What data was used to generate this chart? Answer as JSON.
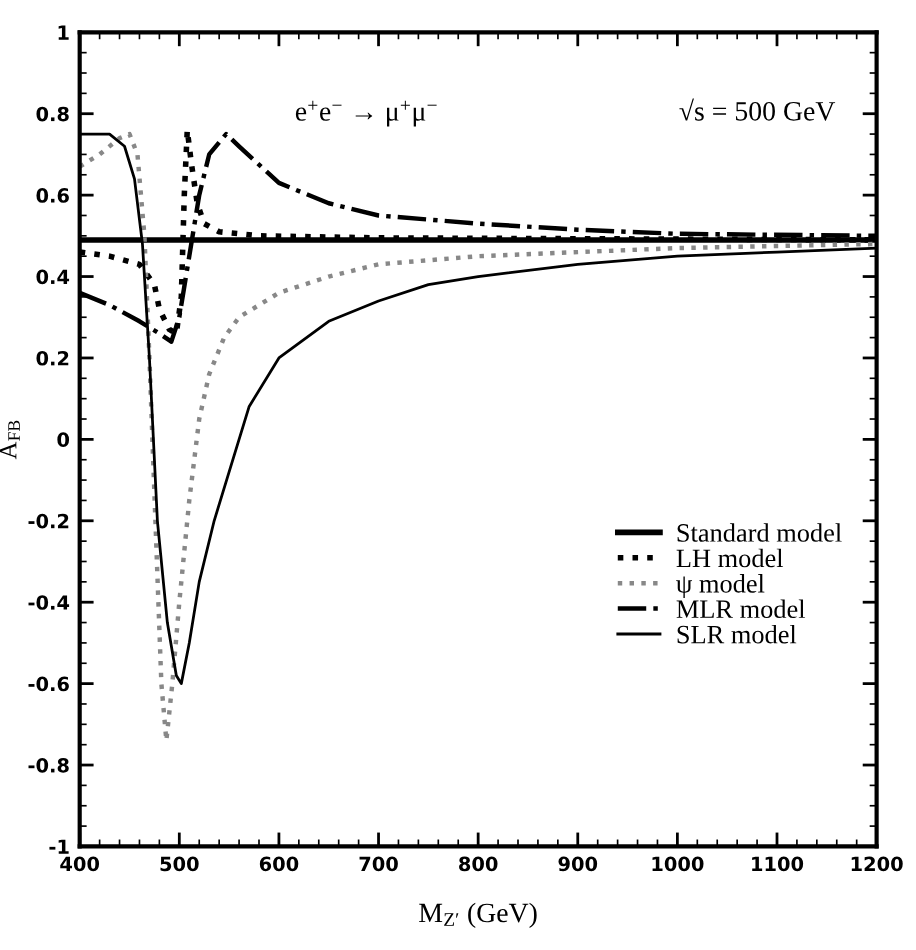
{
  "chart_data": {
    "type": "line",
    "xlabel": "M$_{Z′}$ (GeV)",
    "ylabel": "A$_{FB}$",
    "annotations": [
      "e$^{+}$e$^{−}$ → μ$^{+}$μ$^{−}$",
      "√s = 500 GeV"
    ],
    "xlim": [
      400,
      1200
    ],
    "xticks": [
      400,
      500,
      600,
      700,
      800,
      900,
      1000,
      1100,
      1200
    ],
    "ylim": [
      -1,
      1
    ],
    "yticks": [
      -1,
      -0.8,
      -0.6,
      -0.4,
      -0.2,
      0,
      0.2,
      0.4,
      0.6,
      0.8,
      1
    ],
    "grid": false,
    "legend": "lower right",
    "marker": "none",
    "series": [
      {
        "name": "Standard model",
        "color": "#000000",
        "line_style": "solid",
        "x": [
          400,
          1200
        ],
        "values": [
          0.49,
          0.49
        ]
      },
      {
        "name": "LH model",
        "color": "#000000",
        "line_style": "dotted",
        "x": [
          400,
          430,
          460,
          475,
          480,
          490,
          497,
          502,
          505,
          508,
          512,
          518,
          525,
          540,
          580,
          700,
          1200
        ],
        "values": [
          0.46,
          0.45,
          0.43,
          0.38,
          0.32,
          0.27,
          0.26,
          0.35,
          0.6,
          0.76,
          0.68,
          0.58,
          0.53,
          0.51,
          0.5,
          0.495,
          0.49
        ]
      },
      {
        "name": "ψ model",
        "color": "#888888",
        "line_style": "dotted",
        "x": [
          400,
          420,
          440,
          450,
          458,
          465,
          470,
          476,
          482,
          487,
          493,
          500,
          510,
          520,
          530,
          545,
          560,
          600,
          650,
          700,
          800,
          900,
          1000,
          1200
        ],
        "values": [
          0.67,
          0.7,
          0.74,
          0.75,
          0.7,
          0.5,
          0.2,
          -0.2,
          -0.6,
          -0.74,
          -0.6,
          -0.4,
          -0.15,
          0.05,
          0.16,
          0.25,
          0.3,
          0.36,
          0.4,
          0.43,
          0.45,
          0.46,
          0.47,
          0.48
        ]
      },
      {
        "name": "MLR model",
        "color": "#000000",
        "line_style": "dashdot",
        "x": [
          400,
          430,
          460,
          480,
          492,
          500,
          510,
          520,
          530,
          547,
          560,
          600,
          650,
          700,
          800,
          900,
          1000,
          1200
        ],
        "values": [
          0.36,
          0.33,
          0.29,
          0.26,
          0.24,
          0.3,
          0.45,
          0.6,
          0.7,
          0.75,
          0.72,
          0.63,
          0.58,
          0.55,
          0.53,
          0.515,
          0.505,
          0.5
        ]
      },
      {
        "name": "SLR model",
        "color": "#000000",
        "line_style": "solid",
        "x": [
          400,
          430,
          445,
          455,
          463,
          470,
          478,
          488,
          497,
          502,
          510,
          520,
          535,
          550,
          570,
          600,
          650,
          700,
          750,
          800,
          900,
          1000,
          1100,
          1200
        ],
        "values": [
          0.75,
          0.75,
          0.72,
          0.64,
          0.48,
          0.2,
          -0.2,
          -0.45,
          -0.58,
          -0.6,
          -0.5,
          -0.35,
          -0.2,
          -0.08,
          0.08,
          0.2,
          0.29,
          0.34,
          0.38,
          0.4,
          0.43,
          0.45,
          0.46,
          0.47
        ]
      }
    ]
  }
}
